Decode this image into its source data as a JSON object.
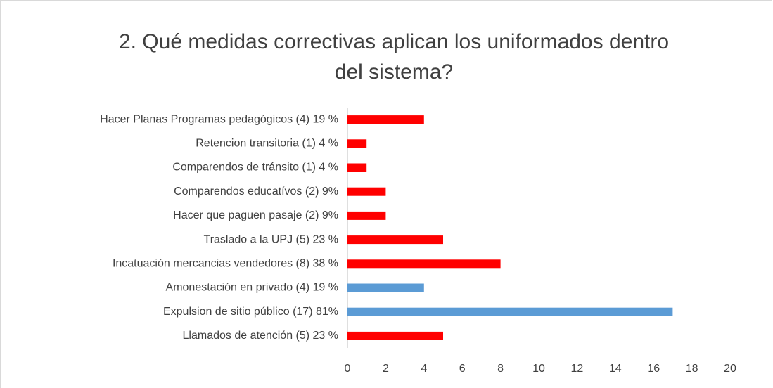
{
  "chart_data": {
    "type": "hbar",
    "title": "2. Qué medidas correctivas aplican los uniformados dentro del sistema?",
    "categories": [
      "Hacer Planas Programas pedagógicos (4) 19 %",
      "Retencion transitoria (1) 4 %",
      "Comparendos de tránsito (1) 4 %",
      "Comparendos educatívos  (2) 9%",
      "Hacer que paguen pasaje (2) 9%",
      "Traslado a la UPJ (5) 23 %",
      "Incatuación mercancias vendedores (8) 38 %",
      "Amonestación en privado (4)  19 %",
      "Expulsion de sitio público (17)  81%",
      "Llamados de atención (5) 23 %"
    ],
    "values": [
      4,
      1,
      1,
      2,
      2,
      5,
      8,
      4,
      17,
      5
    ],
    "colors": [
      "#ff0000",
      "#ff0000",
      "#ff0000",
      "#ff0000",
      "#ff0000",
      "#ff0000",
      "#ff0000",
      "#5b9bd5",
      "#5b9bd5",
      "#ff0000"
    ],
    "xlim": [
      0,
      20
    ],
    "xticks": [
      0,
      2,
      4,
      6,
      8,
      10,
      12,
      14,
      16,
      18,
      20
    ]
  }
}
